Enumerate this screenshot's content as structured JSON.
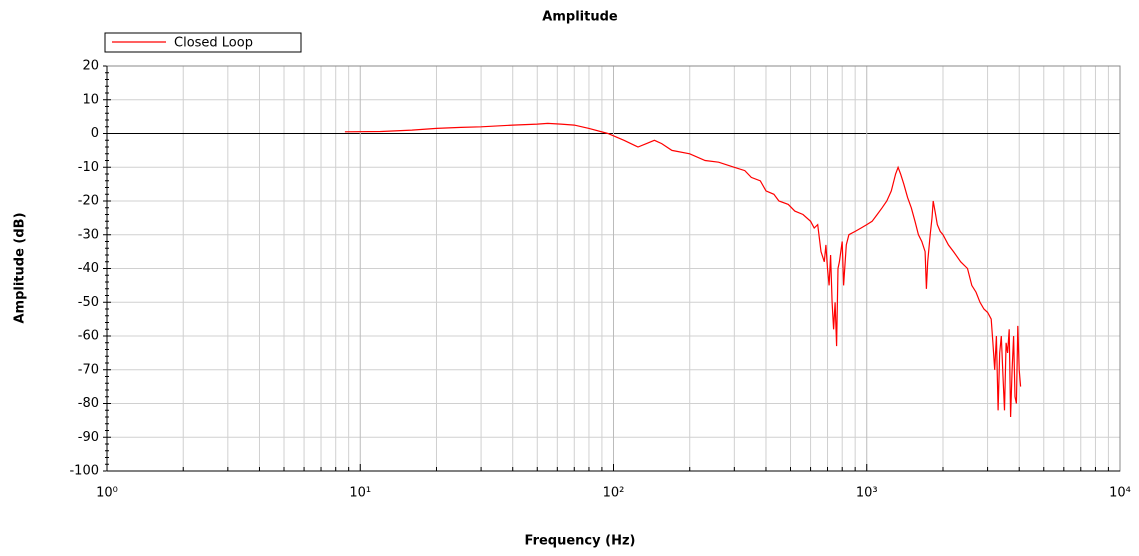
{
  "chart_data": {
    "type": "line",
    "title": "Amplitude",
    "x_label": "Frequency (Hz)",
    "y_label": "Amplitude (dB)",
    "log_x": true,
    "grid": true,
    "legend": "top-left",
    "xlim": [
      1,
      10000
    ],
    "xticks": [
      {
        "value": 1,
        "label": "10⁰"
      },
      {
        "value": 10,
        "label": "10¹"
      },
      {
        "value": 100,
        "label": "10²"
      },
      {
        "value": 1000,
        "label": "10³"
      },
      {
        "value": 10000,
        "label": "10⁴"
      }
    ],
    "ylim": [
      -100,
      20
    ],
    "yticks": [
      20,
      10,
      0,
      -10,
      -20,
      -30,
      -40,
      -50,
      -60,
      -70,
      -80,
      -90,
      -100
    ],
    "x": [
      8.7,
      12,
      16,
      20,
      25,
      30,
      40,
      50,
      55,
      62,
      70,
      80,
      95,
      110,
      125,
      135,
      145,
      155,
      170,
      200,
      230,
      260,
      300,
      330,
      350,
      380,
      400,
      430,
      450,
      490,
      520,
      560,
      600,
      620,
      640,
      660,
      680,
      690,
      700,
      710,
      720,
      730,
      740,
      750,
      760,
      770,
      780,
      800,
      810,
      830,
      850,
      900,
      950,
      1000,
      1050,
      1100,
      1150,
      1200,
      1250,
      1300,
      1330,
      1360,
      1400,
      1450,
      1500,
      1550,
      1600,
      1650,
      1700,
      1720,
      1740,
      1780,
      1810,
      1830,
      1870,
      1900,
      1950,
      2000,
      2100,
      2200,
      2350,
      2500,
      2600,
      2700,
      2800,
      2900,
      3000,
      3100,
      3150,
      3200,
      3250,
      3300,
      3350,
      3400,
      3450,
      3500,
      3550,
      3600,
      3650,
      3700,
      3750,
      3800,
      3850,
      3900,
      3950,
      4000,
      4050
    ],
    "series": [
      {
        "name": "Closed Loop",
        "color": "#ff0000",
        "values": [
          0.5,
          0.6,
          1,
          1.5,
          1.8,
          2,
          2.5,
          2.8,
          3,
          2.8,
          2.5,
          1.5,
          0,
          -2,
          -4,
          -3,
          -2,
          -3,
          -5,
          -6,
          -8,
          -8.5,
          -10,
          -11,
          -13,
          -14,
          -17,
          -18,
          -20,
          -21,
          -23,
          -24,
          -26,
          -28,
          -27,
          -35,
          -38,
          -33,
          -40,
          -45,
          -36,
          -50,
          -58,
          -50,
          -63,
          -40,
          -38,
          -32,
          -45,
          -33,
          -30,
          -29,
          -28,
          -27,
          -26,
          -24,
          -22,
          -20,
          -17,
          -12,
          -10,
          -12,
          -15,
          -19,
          -22,
          -26,
          -30,
          -32,
          -35,
          -46,
          -38,
          -30,
          -25,
          -20,
          -24,
          -27,
          -29,
          -30,
          -33,
          -35,
          -38,
          -40,
          -45,
          -47,
          -50,
          -52,
          -53,
          -55,
          -62,
          -70,
          -60,
          -82,
          -65,
          -60,
          -72,
          -82,
          -62,
          -65,
          -58,
          -84,
          -70,
          -60,
          -78,
          -80,
          -57,
          -70,
          -75
        ]
      }
    ]
  }
}
